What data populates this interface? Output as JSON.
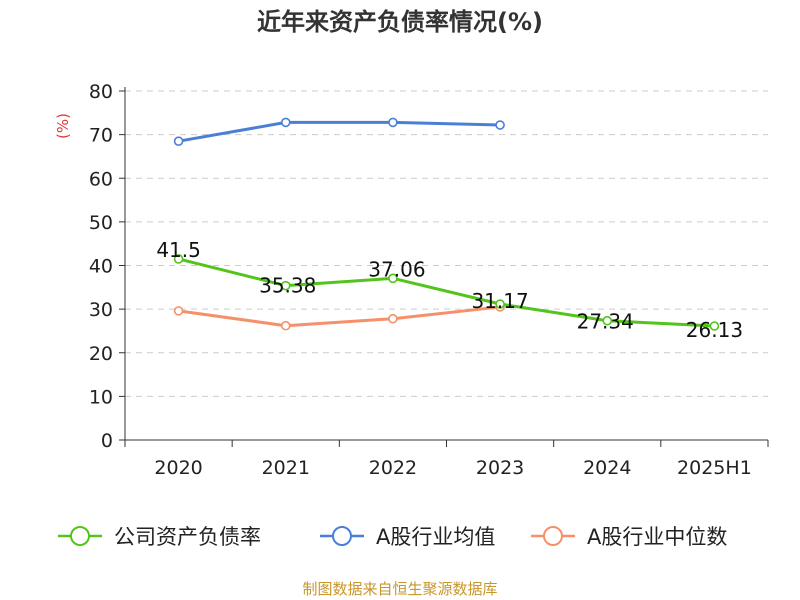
{
  "title": "近年来资产负债率情况(%)",
  "source_text": "制图数据来自恒生聚源数据库",
  "colors": {
    "company": "#52c41a",
    "industry_avg": "#4a7fd8",
    "industry_median": "#f5916a",
    "axis_unit": "#e53935",
    "footer": "#c8962a"
  },
  "chart_data": {
    "type": "line",
    "title": "近年来资产负债率情况(%)",
    "ylabel": "(%)",
    "xlabel": "",
    "categories": [
      "2020",
      "2021",
      "2022",
      "2023",
      "2024",
      "2025H1"
    ],
    "ylim": [
      0,
      80
    ],
    "yticks": [
      "0",
      "10",
      "20",
      "30",
      "40",
      "50",
      "60",
      "70",
      "80"
    ],
    "grid": "horizontal dashed",
    "legend_position": "bottom",
    "series": [
      {
        "name": "公司资产负债率",
        "values": [
          41.5,
          35.38,
          37.06,
          31.17,
          27.34,
          26.13
        ],
        "labels": [
          "41.5",
          "35.38",
          "37.06",
          "31.17",
          "27.34",
          "26.13"
        ]
      },
      {
        "name": "A股行业均值",
        "values": [
          68.5,
          72.8,
          72.8,
          72.2,
          null,
          null
        ]
      },
      {
        "name": "A股行业中位数",
        "values": [
          29.6,
          26.2,
          27.8,
          30.5,
          null,
          null
        ]
      }
    ]
  }
}
